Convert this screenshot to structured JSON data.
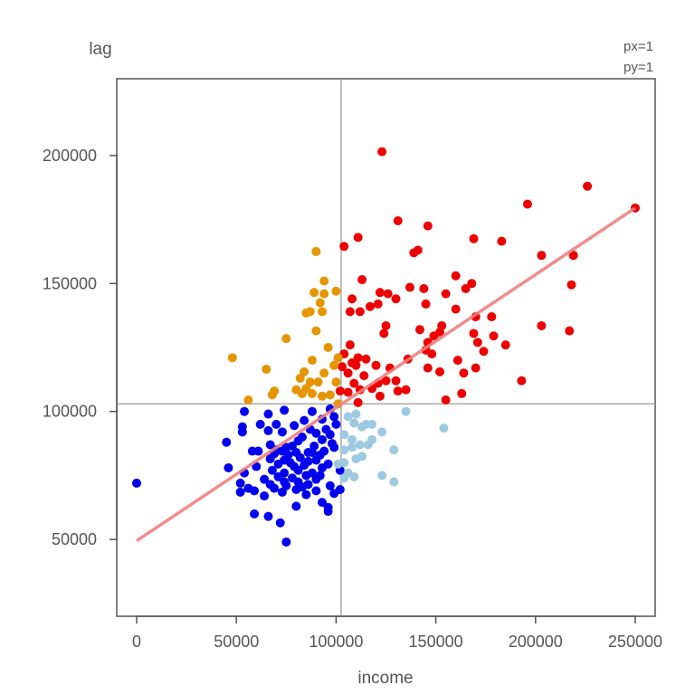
{
  "chart_data": {
    "type": "scatter",
    "title": "",
    "xlabel": "income",
    "ylabel": "lag",
    "corner_notes": [
      "px=1",
      "py=1"
    ],
    "xlim": [
      -10000,
      260000
    ],
    "ylim": [
      20000,
      230000
    ],
    "xticks": [
      0,
      50000,
      100000,
      150000,
      200000,
      250000
    ],
    "yticks": [
      50000,
      100000,
      150000,
      200000
    ],
    "xtick_labels": [
      "0",
      "50000",
      "100000",
      "150000",
      "200000",
      "250000"
    ],
    "ytick_labels": [
      "50000",
      "100000",
      "150000",
      "200000"
    ],
    "grid": false,
    "reference_lines": {
      "x_mean": 102500,
      "y_mean": 103000
    },
    "regression_line": {
      "x": [
        0,
        250000
      ],
      "y": [
        49500,
        179500
      ],
      "color": "#f08080"
    },
    "colors": {
      "high_high": "#ee0000",
      "low_low": "#0000ee",
      "low_high": "#e69500",
      "high_low": "#9ecae1"
    },
    "series": [
      {
        "color_key": "high_high",
        "points": [
          [
            123000,
            201500
          ],
          [
            226000,
            188000
          ],
          [
            196000,
            181000
          ],
          [
            250000,
            179500
          ],
          [
            131000,
            174500
          ],
          [
            146000,
            172500
          ],
          [
            111000,
            168000
          ],
          [
            169000,
            167500
          ],
          [
            183000,
            166500
          ],
          [
            104000,
            164500
          ],
          [
            141000,
            163000
          ],
          [
            139000,
            162000
          ],
          [
            219000,
            161000
          ],
          [
            203000,
            161000
          ],
          [
            160000,
            153000
          ],
          [
            113000,
            151500
          ],
          [
            168000,
            150000
          ],
          [
            218000,
            149500
          ],
          [
            137000,
            148500
          ],
          [
            144000,
            148000
          ],
          [
            165000,
            148000
          ],
          [
            122000,
            146500
          ],
          [
            126000,
            146000
          ],
          [
            155000,
            146000
          ],
          [
            108000,
            144000
          ],
          [
            130000,
            144000
          ],
          [
            121000,
            142000
          ],
          [
            145000,
            142000
          ],
          [
            117000,
            141000
          ],
          [
            160000,
            140000
          ],
          [
            107000,
            139000
          ],
          [
            112000,
            139000
          ],
          [
            170000,
            137000
          ],
          [
            178000,
            137000
          ],
          [
            125000,
            133500
          ],
          [
            153000,
            133500
          ],
          [
            203000,
            133500
          ],
          [
            142000,
            132000
          ],
          [
            152000,
            131000
          ],
          [
            124000,
            130500
          ],
          [
            217000,
            131500
          ],
          [
            149000,
            129500
          ],
          [
            179000,
            129500
          ],
          [
            169000,
            130500
          ],
          [
            171000,
            127000
          ],
          [
            146000,
            127000
          ],
          [
            107000,
            126000
          ],
          [
            185000,
            126000
          ],
          [
            145000,
            124000
          ],
          [
            174000,
            123500
          ],
          [
            148000,
            122500
          ],
          [
            104000,
            122500
          ],
          [
            111000,
            121000
          ],
          [
            136000,
            120500
          ],
          [
            161000,
            120000
          ],
          [
            115000,
            120500
          ],
          [
            108000,
            119000
          ],
          [
            103000,
            117500
          ],
          [
            110000,
            118000
          ],
          [
            120000,
            118000
          ],
          [
            146000,
            117000
          ],
          [
            127000,
            117000
          ],
          [
            170000,
            117000
          ],
          [
            152000,
            115500
          ],
          [
            164000,
            115000
          ],
          [
            106000,
            115000
          ],
          [
            114000,
            114000
          ],
          [
            125000,
            112000
          ],
          [
            130000,
            112000
          ],
          [
            193000,
            112000
          ],
          [
            121000,
            111000
          ],
          [
            109000,
            111000
          ],
          [
            118000,
            109000
          ],
          [
            135000,
            108500
          ],
          [
            112000,
            108500
          ],
          [
            131000,
            108000
          ],
          [
            102000,
            108000
          ],
          [
            106000,
            107500
          ],
          [
            163000,
            107000
          ],
          [
            122000,
            106000
          ],
          [
            155000,
            104500
          ],
          [
            111000,
            103500
          ]
        ]
      },
      {
        "color_key": "low_high",
        "points": [
          [
            90000,
            162500
          ],
          [
            94000,
            151000
          ],
          [
            89000,
            146500
          ],
          [
            94000,
            146000
          ],
          [
            100000,
            147000
          ],
          [
            92000,
            142500
          ],
          [
            85000,
            138500
          ],
          [
            87000,
            139000
          ],
          [
            93000,
            139000
          ],
          [
            90000,
            131500
          ],
          [
            96000,
            125000
          ],
          [
            75000,
            128500
          ],
          [
            101000,
            121000
          ],
          [
            88000,
            120000
          ],
          [
            99000,
            118000
          ],
          [
            48000,
            121000
          ],
          [
            65000,
            116500
          ],
          [
            94000,
            115000
          ],
          [
            84000,
            115500
          ],
          [
            82000,
            113000
          ],
          [
            87000,
            111500
          ],
          [
            91000,
            111500
          ],
          [
            80000,
            108500
          ],
          [
            85000,
            109000
          ],
          [
            100000,
            111500
          ],
          [
            69000,
            108000
          ],
          [
            68000,
            106500
          ],
          [
            83000,
            107000
          ],
          [
            88000,
            107000
          ],
          [
            93000,
            106000
          ],
          [
            97000,
            106500
          ],
          [
            56000,
            104500
          ],
          [
            101000,
            103000
          ]
        ]
      },
      {
        "color_key": "low_low",
        "points": [
          [
            54000,
            100000
          ],
          [
            66000,
            99000
          ],
          [
            74000,
            100500
          ],
          [
            88000,
            100000
          ],
          [
            97000,
            101000
          ],
          [
            93000,
            97000
          ],
          [
            99000,
            98000
          ],
          [
            84000,
            96500
          ],
          [
            70000,
            95000
          ],
          [
            62000,
            95000
          ],
          [
            53000,
            94000
          ],
          [
            79000,
            94500
          ],
          [
            95000,
            93000
          ],
          [
            100000,
            95000
          ],
          [
            73000,
            92000
          ],
          [
            97000,
            91000
          ],
          [
            66000,
            92500
          ],
          [
            87000,
            93000
          ],
          [
            53000,
            92000
          ],
          [
            83000,
            90000
          ],
          [
            90000,
            91500
          ],
          [
            98000,
            87500
          ],
          [
            81000,
            88500
          ],
          [
            45000,
            88000
          ],
          [
            67000,
            87000
          ],
          [
            93000,
            89000
          ],
          [
            75000,
            86000
          ],
          [
            78000,
            86500
          ],
          [
            89000,
            86500
          ],
          [
            99000,
            86000
          ],
          [
            70000,
            85000
          ],
          [
            86000,
            84000
          ],
          [
            94000,
            84500
          ],
          [
            58000,
            84500
          ],
          [
            61000,
            84500
          ],
          [
            73000,
            84500
          ],
          [
            88000,
            84000
          ],
          [
            80000,
            84000
          ],
          [
            69000,
            83500
          ],
          [
            76000,
            83000
          ],
          [
            92000,
            83000
          ],
          [
            82000,
            82000
          ],
          [
            67000,
            81500
          ],
          [
            74000,
            81000
          ],
          [
            90000,
            81000
          ],
          [
            86000,
            80500
          ],
          [
            77000,
            80000
          ],
          [
            71000,
            79500
          ],
          [
            96000,
            79500
          ],
          [
            84000,
            79000
          ],
          [
            60000,
            78500
          ],
          [
            79000,
            78500
          ],
          [
            93000,
            78000
          ],
          [
            46000,
            78000
          ],
          [
            68000,
            77000
          ],
          [
            81000,
            77000
          ],
          [
            88000,
            76000
          ],
          [
            74000,
            76000
          ],
          [
            102000,
            77000
          ],
          [
            54000,
            76000
          ],
          [
            85000,
            75000
          ],
          [
            92000,
            75000
          ],
          [
            71000,
            74500
          ],
          [
            78000,
            74000
          ],
          [
            64000,
            73500
          ],
          [
            90000,
            73500
          ],
          [
            81000,
            72500
          ],
          [
            74000,
            72500
          ],
          [
            52000,
            72000
          ],
          [
            0,
            72000
          ],
          [
            67000,
            71500
          ],
          [
            86000,
            71500
          ],
          [
            75000,
            71000
          ],
          [
            83000,
            70500
          ],
          [
            97000,
            71000
          ],
          [
            69000,
            70000
          ],
          [
            56000,
            70000
          ],
          [
            80000,
            69500
          ],
          [
            90000,
            69000
          ],
          [
            102000,
            69500
          ],
          [
            52000,
            68500
          ],
          [
            59000,
            69000
          ],
          [
            73000,
            68500
          ],
          [
            99000,
            68000
          ],
          [
            85000,
            67500
          ],
          [
            64000,
            67000
          ],
          [
            93000,
            64500
          ],
          [
            80000,
            63000
          ],
          [
            96000,
            62500
          ],
          [
            59000,
            60000
          ],
          [
            66000,
            59000
          ],
          [
            96000,
            61000
          ],
          [
            72000,
            56500
          ],
          [
            75000,
            49000
          ]
        ]
      },
      {
        "color_key": "high_low",
        "points": [
          [
            110000,
            99000
          ],
          [
            106000,
            98000
          ],
          [
            135000,
            100000
          ],
          [
            109000,
            95500
          ],
          [
            115000,
            95000
          ],
          [
            118000,
            95000
          ],
          [
            113000,
            94000
          ],
          [
            154000,
            93500
          ],
          [
            123000,
            92000
          ],
          [
            104000,
            91000
          ],
          [
            108000,
            89000
          ],
          [
            112000,
            87000
          ],
          [
            118000,
            89000
          ],
          [
            116000,
            87000
          ],
          [
            108000,
            86000
          ],
          [
            129000,
            85000
          ],
          [
            104000,
            85000
          ],
          [
            113000,
            82500
          ],
          [
            104000,
            80000
          ],
          [
            110000,
            81500
          ],
          [
            101000,
            79500
          ],
          [
            106000,
            76000
          ],
          [
            109000,
            74500
          ],
          [
            104000,
            74000
          ],
          [
            123000,
            75000
          ],
          [
            129000,
            72500
          ]
        ]
      }
    ]
  }
}
